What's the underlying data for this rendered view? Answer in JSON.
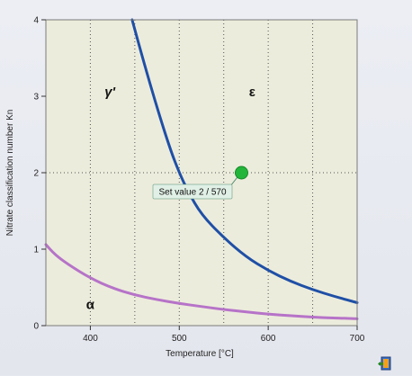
{
  "chart_data": {
    "type": "line",
    "title": "",
    "xlabel": "Temperature [°C]",
    "ylabel": "Nitrate classification number Kn",
    "xlim": [
      350,
      700
    ],
    "ylim": [
      0,
      4
    ],
    "x_ticks": [
      400,
      500,
      600,
      700
    ],
    "y_ticks": [
      0,
      1,
      2,
      3,
      4
    ],
    "grid": "dotted, vertical at x ticks and horizontal at y ticks",
    "colors": {
      "plot_bg": "#ececdc",
      "border": "#7a7a7a",
      "grid": "#555555",
      "epsilon_boundary": "#1f4fa6",
      "alpha_boundary": "#b673c8",
      "marker": "#23b53a",
      "callout_bg": "#e1f0e6",
      "callout_border": "#4a8a6a"
    },
    "series": [
      {
        "color": "#1f4fa6",
        "x": [
          447,
          460,
          475,
          490,
          500,
          510,
          525,
          550,
          575,
          600,
          625,
          650,
          675,
          700
        ],
        "y": [
          4.0,
          3.45,
          2.85,
          2.3,
          2.0,
          1.75,
          1.45,
          1.15,
          0.9,
          0.72,
          0.58,
          0.47,
          0.38,
          0.3
        ]
      },
      {
        "color": "#b673c8",
        "x": [
          350,
          360,
          375,
          400,
          425,
          450,
          475,
          500,
          525,
          550,
          575,
          600,
          625,
          650,
          675,
          700
        ],
        "y": [
          1.06,
          0.93,
          0.8,
          0.62,
          0.49,
          0.4,
          0.34,
          0.29,
          0.25,
          0.21,
          0.18,
          0.15,
          0.13,
          0.11,
          0.1,
          0.09
        ]
      }
    ],
    "regions": [
      {
        "label": "γ'",
        "x": 422,
        "y": 3.0
      },
      {
        "label": "ε",
        "x": 582,
        "y": 3.0
      },
      {
        "label": "α",
        "x": 400,
        "y": 0.22
      }
    ],
    "marker": {
      "x": 570,
      "y": 2.0,
      "label": "Set value 2 / 570"
    }
  },
  "icons": {
    "window": "window-door-icon"
  }
}
